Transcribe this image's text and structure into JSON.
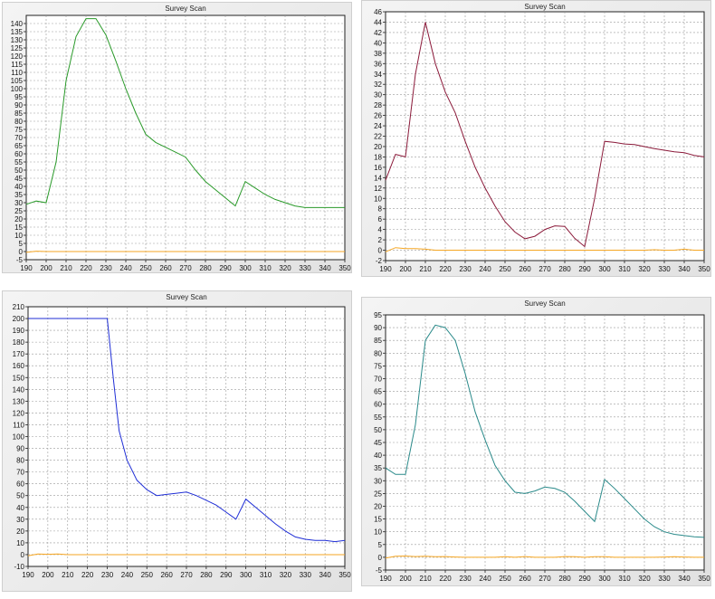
{
  "colors": {
    "baseline": "#f5a623",
    "grid": "#9a9a9a",
    "axis": "#222222",
    "plot_bg": "#ffffff"
  },
  "chart_data": [
    {
      "type": "line",
      "title": "Survey Scan",
      "color": "#2a9a2a",
      "xlim": [
        190,
        350
      ],
      "ylim": [
        -5,
        145
      ],
      "xticks": [
        190,
        200,
        210,
        220,
        230,
        240,
        250,
        260,
        270,
        280,
        290,
        300,
        310,
        320,
        330,
        340,
        350
      ],
      "yticks": [
        -5,
        0,
        5,
        10,
        15,
        20,
        25,
        30,
        35,
        40,
        45,
        50,
        55,
        60,
        65,
        70,
        75,
        80,
        85,
        90,
        95,
        100,
        105,
        110,
        115,
        120,
        125,
        130,
        135,
        140
      ],
      "series": [
        {
          "x": [
            190,
            195,
            200,
            205,
            210,
            215,
            220,
            225,
            230,
            235,
            240,
            245,
            250,
            255,
            260,
            265,
            270,
            275,
            280,
            285,
            290,
            295,
            300,
            305,
            310,
            315,
            320,
            325,
            330,
            335,
            340,
            345,
            350
          ],
          "y": [
            29,
            31,
            30,
            55,
            105,
            132,
            143,
            143,
            133,
            117,
            100,
            85,
            72,
            67,
            64,
            61,
            58,
            50,
            43,
            38,
            33,
            28,
            43,
            39,
            35,
            32,
            30,
            28,
            27,
            27,
            27,
            27,
            27
          ]
        }
      ],
      "baseline": {
        "x": [
          190,
          195,
          200,
          205,
          210,
          215,
          220,
          225,
          230,
          235,
          240,
          245,
          250,
          255,
          260,
          265,
          270,
          275,
          280,
          285,
          290,
          295,
          300,
          305,
          310,
          315,
          320,
          325,
          330,
          335,
          340,
          345,
          350
        ],
        "y": [
          -0.5,
          0.2,
          0,
          0,
          0,
          0,
          0,
          0,
          0,
          0,
          0,
          0,
          0,
          0,
          0,
          0,
          0,
          0,
          0,
          0,
          0,
          0,
          0,
          0,
          0,
          0,
          0,
          0,
          0,
          0,
          0,
          0,
          0
        ]
      }
    },
    {
      "type": "line",
      "title": "Survey Scan",
      "color": "#8b1a3a",
      "xlim": [
        190,
        350
      ],
      "ylim": [
        -2,
        46
      ],
      "xticks": [
        190,
        200,
        210,
        220,
        230,
        240,
        250,
        260,
        270,
        280,
        290,
        300,
        310,
        320,
        330,
        340,
        350
      ],
      "yticks": [
        -2,
        0,
        2,
        4,
        6,
        8,
        10,
        12,
        14,
        16,
        18,
        20,
        22,
        24,
        26,
        28,
        30,
        32,
        34,
        36,
        38,
        40,
        42,
        44,
        46
      ],
      "series": [
        {
          "x": [
            190,
            195,
            200,
            205,
            210,
            215,
            220,
            225,
            230,
            235,
            240,
            245,
            250,
            255,
            260,
            265,
            270,
            275,
            280,
            285,
            290,
            295,
            300,
            305,
            310,
            315,
            320,
            325,
            330,
            335,
            340,
            345,
            350
          ],
          "y": [
            13.5,
            18.5,
            18,
            34,
            44,
            36,
            30.5,
            26.5,
            21,
            16,
            12,
            8.5,
            5.5,
            3.5,
            2.2,
            2.7,
            4,
            4.7,
            4.6,
            2.3,
            0.7,
            10,
            21,
            20.8,
            20.5,
            20.4,
            20,
            19.6,
            19.3,
            19,
            18.8,
            18.3,
            18
          ]
        }
      ],
      "baseline": {
        "x": [
          190,
          195,
          200,
          205,
          210,
          215,
          220,
          225,
          230,
          235,
          240,
          245,
          250,
          255,
          260,
          265,
          270,
          275,
          280,
          285,
          290,
          295,
          300,
          305,
          310,
          315,
          320,
          325,
          330,
          335,
          340,
          345,
          350
        ],
        "y": [
          -0.3,
          0.5,
          0.3,
          0.3,
          0.2,
          0,
          0,
          0,
          0,
          0,
          0,
          0,
          0,
          0,
          0,
          0,
          0,
          0,
          0,
          0,
          0,
          0,
          0,
          0,
          0,
          0,
          0,
          0.1,
          0,
          0,
          0.2,
          0,
          0
        ]
      }
    },
    {
      "type": "line",
      "title": "Survey Scan",
      "color": "#1f2ed6",
      "xlim": [
        190,
        350
      ],
      "ylim": [
        -10,
        210
      ],
      "xticks": [
        190,
        200,
        210,
        220,
        230,
        240,
        250,
        260,
        270,
        280,
        290,
        300,
        310,
        320,
        330,
        340,
        350
      ],
      "yticks": [
        -10,
        0,
        10,
        20,
        30,
        40,
        50,
        60,
        70,
        80,
        90,
        100,
        110,
        120,
        130,
        140,
        150,
        160,
        170,
        180,
        190,
        200,
        210
      ],
      "series": [
        {
          "x": [
            190,
            195,
            200,
            205,
            210,
            215,
            220,
            225,
            230,
            233,
            236,
            240,
            245,
            250,
            255,
            260,
            265,
            270,
            275,
            280,
            285,
            290,
            295,
            300,
            305,
            310,
            315,
            320,
            325,
            330,
            335,
            340,
            345,
            350
          ],
          "y": [
            200,
            200,
            200,
            200,
            200,
            200,
            200,
            200,
            200,
            150,
            105,
            80,
            63,
            55,
            50,
            51,
            52,
            53,
            50,
            46,
            42,
            36,
            30,
            47,
            40,
            33,
            26,
            20,
            15,
            13,
            12,
            12,
            11,
            12
          ]
        }
      ],
      "baseline": {
        "x": [
          190,
          195,
          200,
          205,
          210,
          215,
          220,
          225,
          230,
          235,
          240,
          245,
          250,
          255,
          260,
          265,
          270,
          275,
          280,
          285,
          290,
          295,
          300,
          305,
          310,
          315,
          320,
          325,
          330,
          335,
          340,
          345,
          350
        ],
        "y": [
          -1,
          0.5,
          0.3,
          0.5,
          0,
          0,
          0,
          0,
          0,
          0,
          0,
          0,
          0,
          0,
          0,
          0,
          0,
          0,
          0,
          0,
          0,
          0,
          0,
          0,
          0,
          0,
          0,
          0,
          0,
          0,
          0,
          0,
          0
        ]
      }
    },
    {
      "type": "line",
      "title": "Survey Scan",
      "color": "#2a8a8a",
      "xlim": [
        190,
        350
      ],
      "ylim": [
        -5,
        95
      ],
      "xticks": [
        190,
        200,
        210,
        220,
        230,
        240,
        250,
        260,
        270,
        280,
        290,
        300,
        310,
        320,
        330,
        340,
        350
      ],
      "yticks": [
        -5,
        0,
        5,
        10,
        15,
        20,
        25,
        30,
        35,
        40,
        45,
        50,
        55,
        60,
        65,
        70,
        75,
        80,
        85,
        90,
        95
      ],
      "series": [
        {
          "x": [
            190,
            195,
            200,
            205,
            210,
            215,
            220,
            225,
            230,
            235,
            240,
            245,
            250,
            255,
            260,
            265,
            270,
            275,
            280,
            285,
            290,
            295,
            300,
            305,
            310,
            315,
            320,
            325,
            330,
            335,
            340,
            345,
            350
          ],
          "y": [
            35,
            32.5,
            32.5,
            52,
            85,
            91,
            90,
            85,
            72,
            57,
            46,
            36,
            30,
            25.5,
            25,
            26,
            27.5,
            27,
            25.5,
            22,
            18,
            14,
            30.5,
            27,
            23,
            19,
            15,
            12,
            10,
            9,
            8.5,
            8,
            7.8
          ]
        }
      ],
      "baseline": {
        "x": [
          190,
          195,
          200,
          205,
          210,
          215,
          220,
          225,
          230,
          235,
          240,
          245,
          250,
          255,
          260,
          265,
          270,
          275,
          280,
          285,
          290,
          295,
          300,
          305,
          310,
          315,
          320,
          325,
          330,
          335,
          340,
          345,
          350
        ],
        "y": [
          -0.3,
          0.4,
          0.5,
          0.3,
          0.4,
          0.2,
          0.3,
          0.1,
          0,
          0,
          0,
          0,
          0.2,
          0,
          0.3,
          0,
          0,
          0,
          0.3,
          0.2,
          0,
          0.2,
          0.2,
          0,
          0,
          0,
          0,
          0,
          0.1,
          0.2,
          0.1,
          0,
          0
        ]
      }
    }
  ]
}
